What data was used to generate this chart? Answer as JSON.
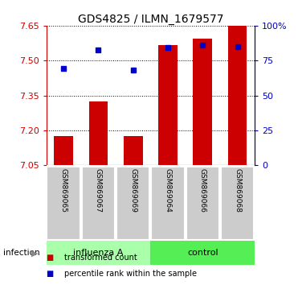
{
  "title": "GDS4825 / ILMN_1679577",
  "categories": [
    "GSM869065",
    "GSM869067",
    "GSM869069",
    "GSM869064",
    "GSM869066",
    "GSM869068"
  ],
  "group_labels": [
    "influenza A",
    "control"
  ],
  "group_sizes": [
    3,
    3
  ],
  "bar_values": [
    7.175,
    7.325,
    7.175,
    7.565,
    7.595,
    7.655
  ],
  "bar_bottom": 7.05,
  "percentile_values": [
    7.465,
    7.545,
    7.46,
    7.555,
    7.565,
    7.56
  ],
  "ylim": [
    7.05,
    7.65
  ],
  "right_ylim": [
    0,
    100
  ],
  "yticks_left": [
    7.05,
    7.2,
    7.35,
    7.5,
    7.65
  ],
  "yticks_right": [
    0,
    25,
    50,
    75,
    100
  ],
  "bar_color": "#cc0000",
  "percentile_color": "#0000cc",
  "bar_width": 0.55,
  "influenza_color": "#aaffaa",
  "control_color": "#55ee55",
  "sample_bg_color": "#cccccc",
  "sample_label_fontsize": 6.5,
  "infection_label": "infection",
  "legend_bar_label": "transformed count",
  "legend_pct_label": "percentile rank within the sample",
  "title_fontsize": 10,
  "tick_fontsize": 8,
  "left_tick_color": "#cc0000",
  "right_tick_color": "#0000bb"
}
